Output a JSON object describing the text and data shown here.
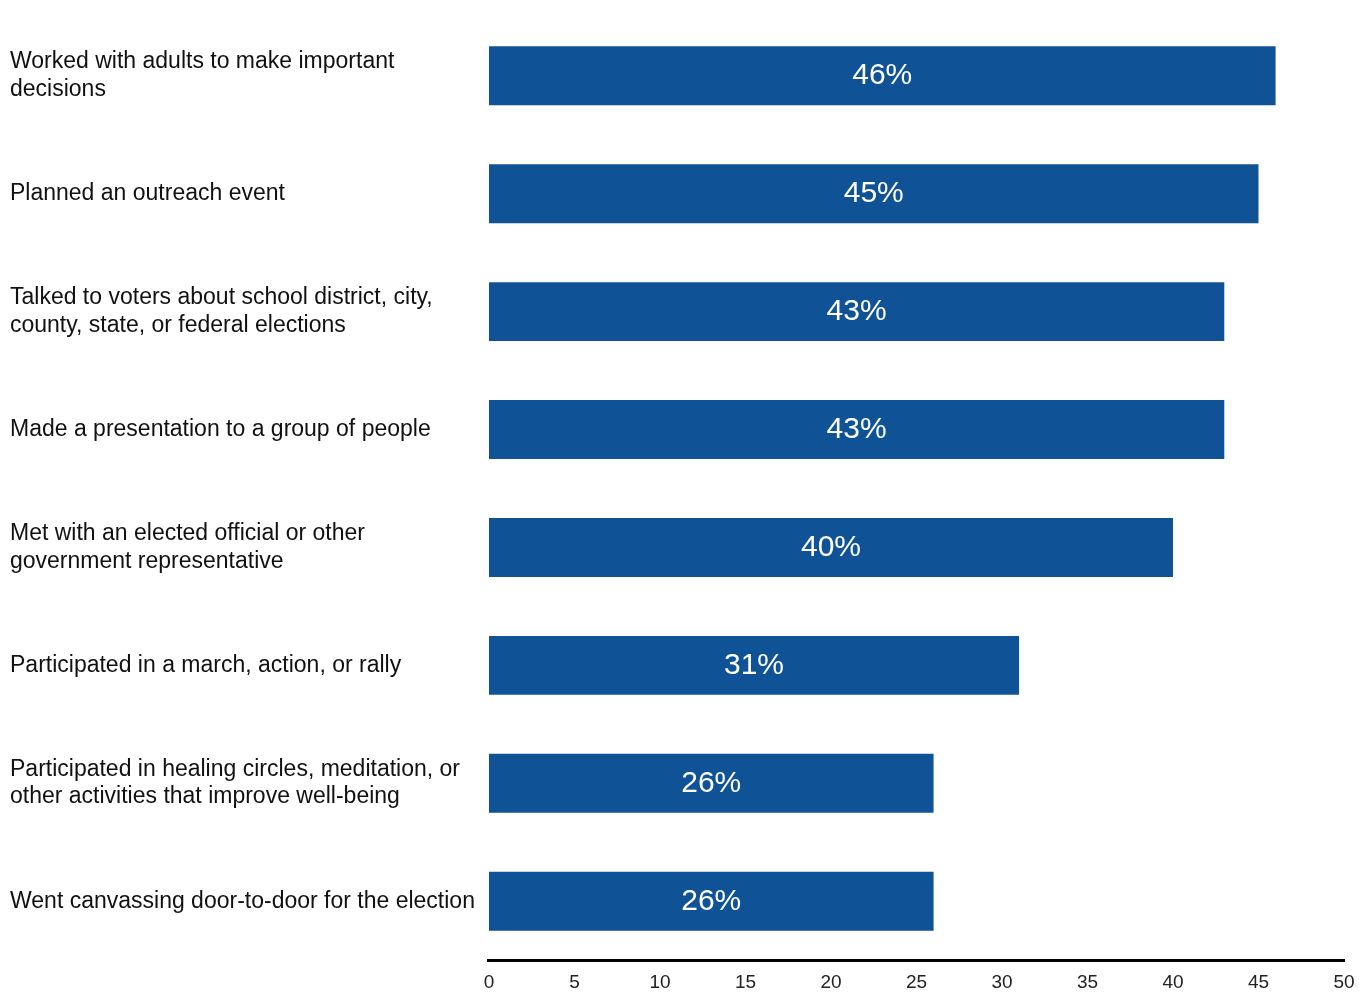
{
  "chart_data": {
    "type": "bar",
    "orientation": "horizontal",
    "categories": [
      "Worked with adults to make important decisions",
      "Planned an outreach event",
      "Talked to voters about school district, city, county, state, or federal elections",
      "Made a presentation to a group of people",
      "Met with an elected official or other government representative",
      "Participated in a march, action, or rally",
      "Participated in healing circles, meditation, or other activities that improve well-being",
      "Went canvassing door-to-door for the election"
    ],
    "values": [
      46,
      45,
      43,
      43,
      40,
      31,
      26,
      26
    ],
    "value_labels": [
      "46%",
      "45%",
      "43%",
      "43%",
      "40%",
      "31%",
      "26%",
      "26%"
    ],
    "color": "#0f5296",
    "xlim": [
      0,
      50
    ],
    "xticks": [
      0,
      5,
      10,
      15,
      20,
      25,
      30,
      35,
      40,
      45,
      50
    ],
    "grid": false,
    "legend": false
  }
}
